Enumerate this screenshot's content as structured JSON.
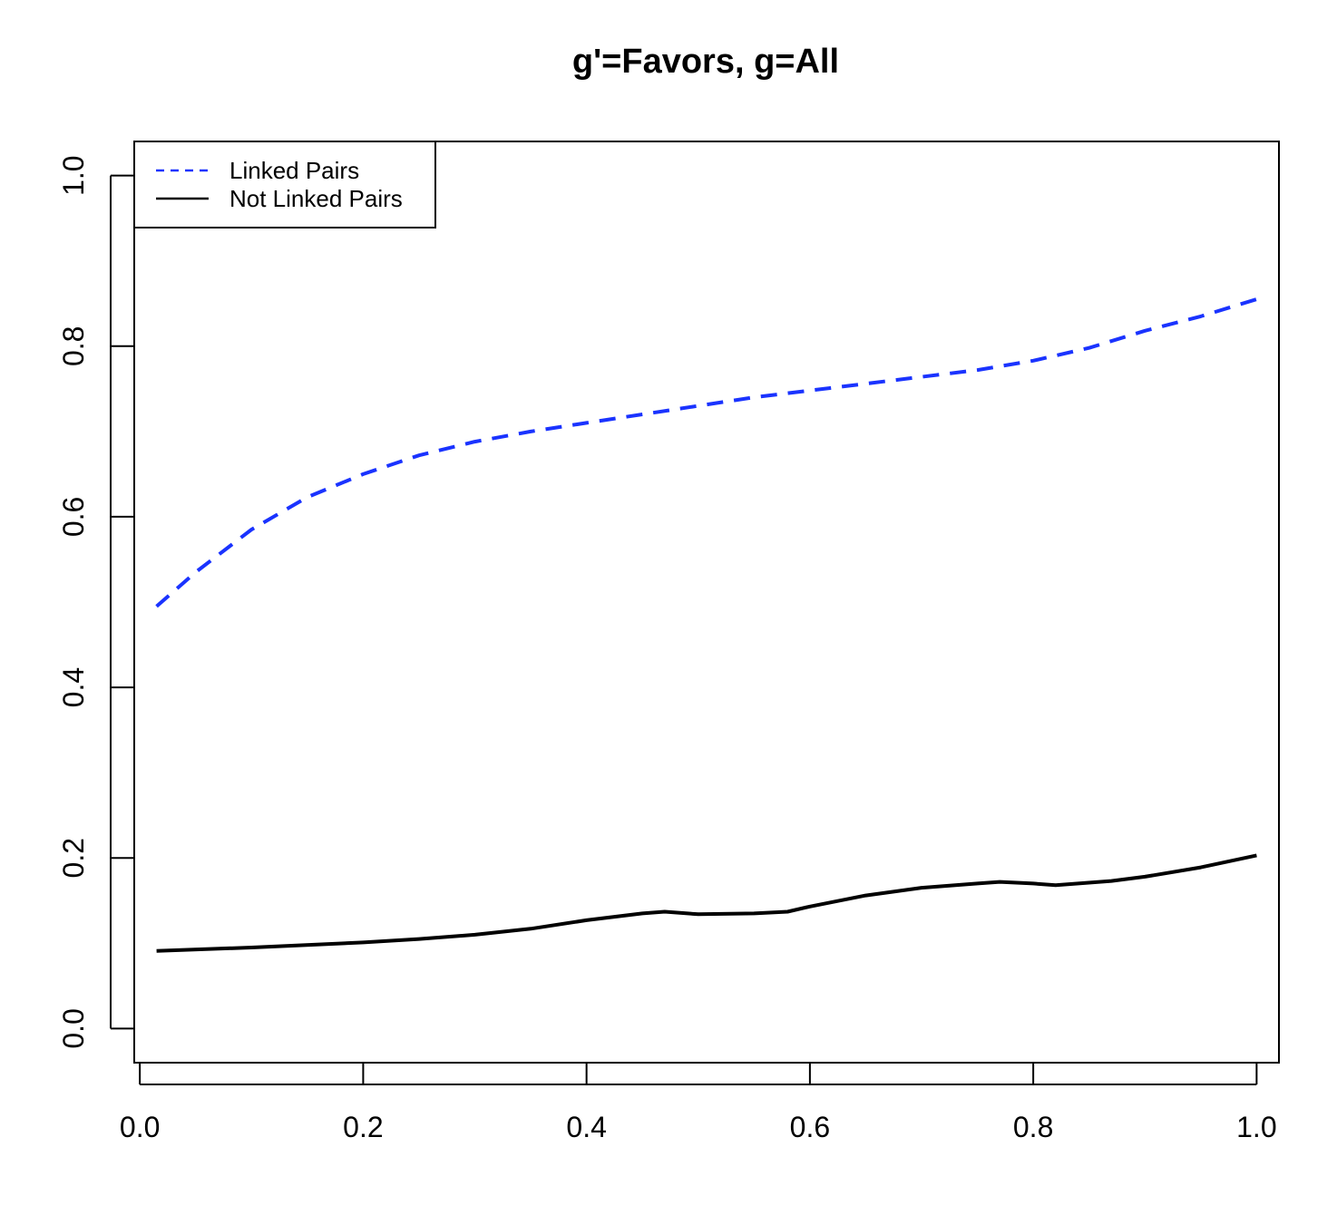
{
  "chart_data": {
    "type": "line",
    "title": "g'=Favors, g=All",
    "xlabel": "",
    "ylabel": "",
    "xlim": [
      -0.005,
      1.02
    ],
    "ylim": [
      -0.04,
      1.04
    ],
    "x_ticks": [
      "0.0",
      "0.2",
      "0.4",
      "0.6",
      "0.8",
      "1.0"
    ],
    "y_ticks": [
      "0.0",
      "0.2",
      "0.4",
      "0.6",
      "0.8",
      "1.0"
    ],
    "grid": false,
    "legend_position": "top-left",
    "series": [
      {
        "name": "Linked Pairs",
        "color": "#1a33ff",
        "line_style": "dashed",
        "x": [
          0.015,
          0.05,
          0.1,
          0.15,
          0.2,
          0.25,
          0.3,
          0.35,
          0.4,
          0.45,
          0.5,
          0.55,
          0.6,
          0.65,
          0.7,
          0.75,
          0.8,
          0.85,
          0.9,
          0.95,
          1.0
        ],
        "y": [
          0.495,
          0.535,
          0.585,
          0.623,
          0.65,
          0.672,
          0.688,
          0.7,
          0.71,
          0.72,
          0.73,
          0.74,
          0.748,
          0.756,
          0.764,
          0.772,
          0.783,
          0.798,
          0.818,
          0.835,
          0.855
        ]
      },
      {
        "name": "Not Linked Pairs",
        "color": "#000000",
        "line_style": "solid",
        "x": [
          0.015,
          0.1,
          0.2,
          0.25,
          0.3,
          0.35,
          0.4,
          0.45,
          0.47,
          0.5,
          0.55,
          0.58,
          0.6,
          0.65,
          0.7,
          0.75,
          0.77,
          0.8,
          0.82,
          0.87,
          0.9,
          0.95,
          1.0
        ],
        "y": [
          0.091,
          0.095,
          0.101,
          0.105,
          0.11,
          0.117,
          0.127,
          0.135,
          0.137,
          0.134,
          0.135,
          0.137,
          0.143,
          0.156,
          0.165,
          0.17,
          0.172,
          0.17,
          0.168,
          0.173,
          0.178,
          0.189,
          0.203
        ]
      }
    ]
  }
}
